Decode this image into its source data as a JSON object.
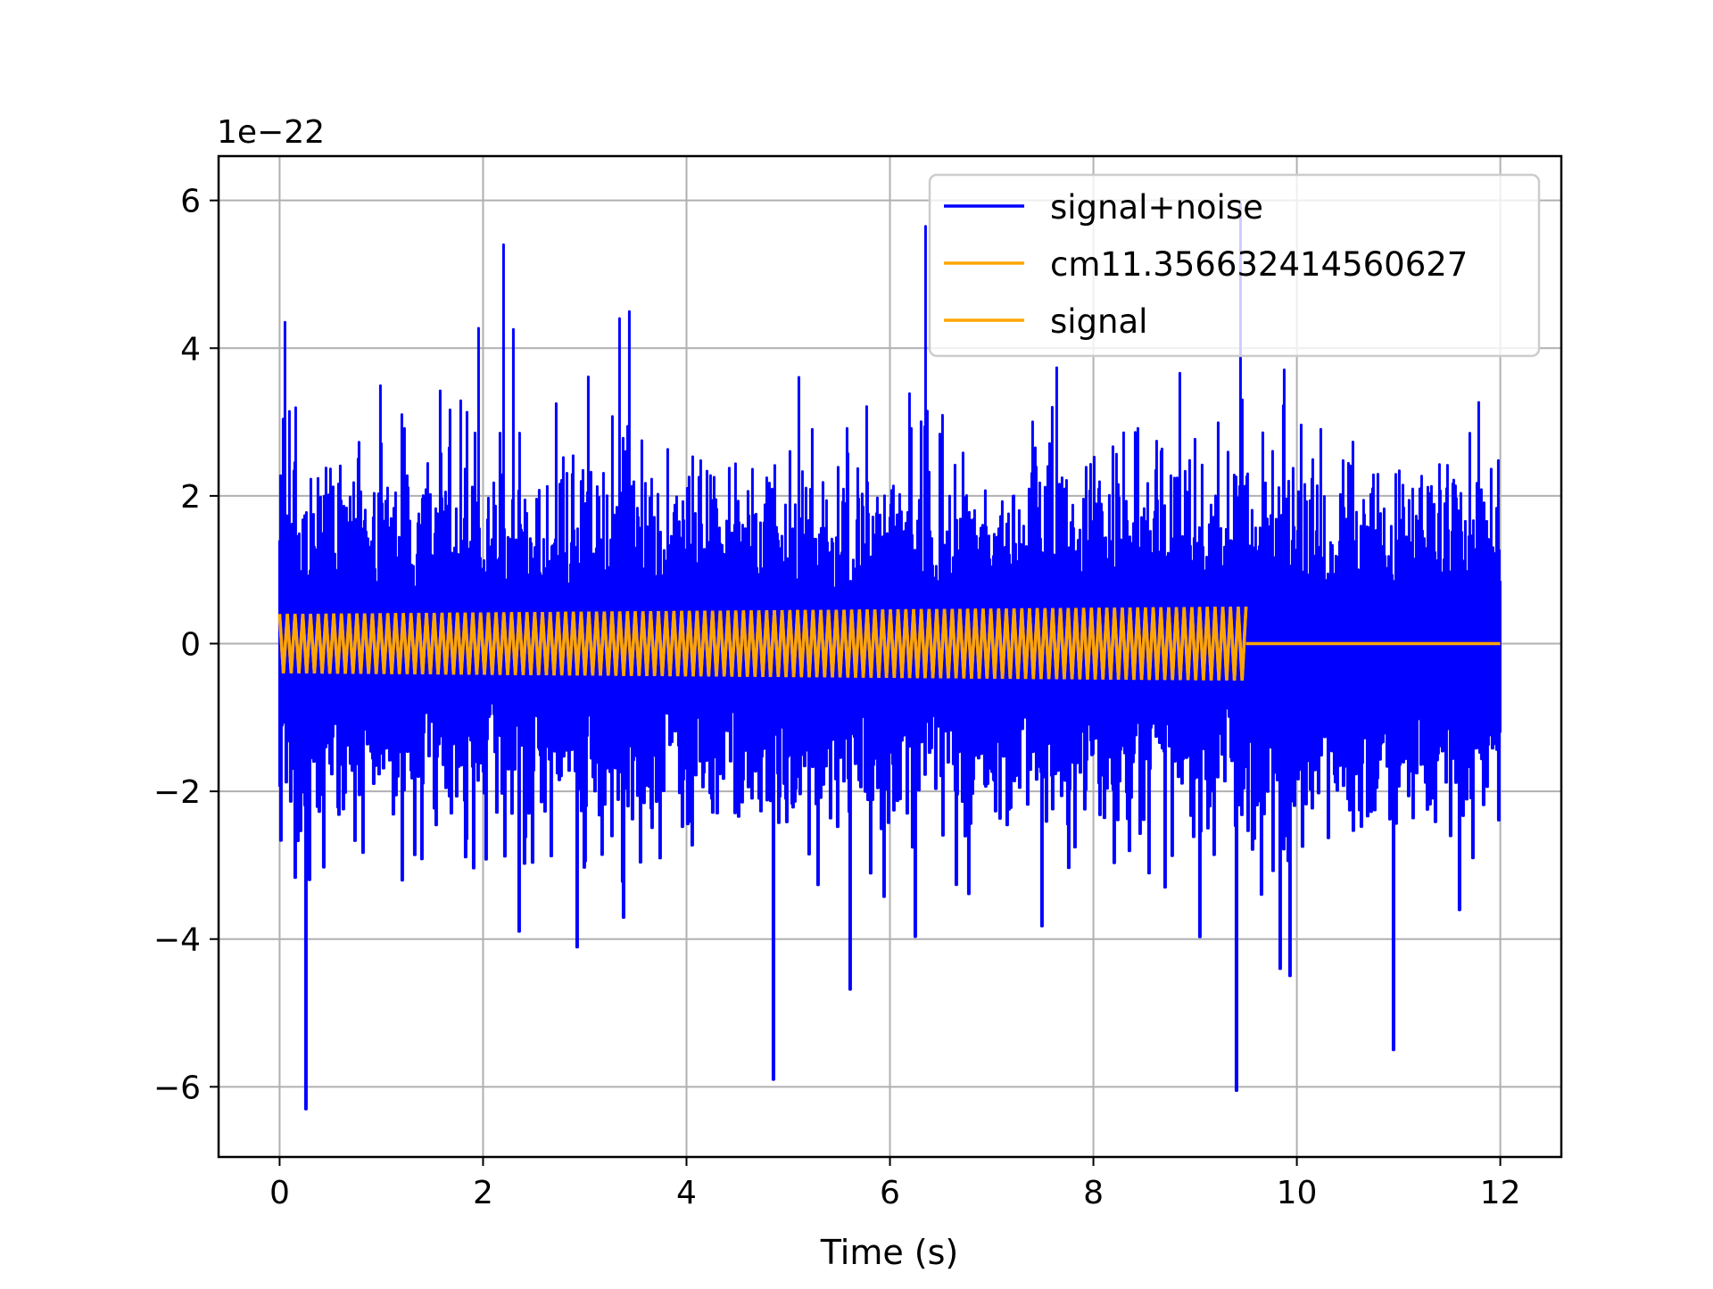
{
  "chart_data": {
    "type": "line",
    "title": "",
    "xlabel": "Time (s)",
    "ylabel": "",
    "y_offset_label": "1e−22",
    "xlim": [
      -0.6,
      12.6
    ],
    "ylim": [
      -6.95,
      6.6
    ],
    "xticks": [
      0,
      2,
      4,
      6,
      8,
      10,
      12
    ],
    "xtick_labels": [
      "0",
      "2",
      "4",
      "6",
      "8",
      "10",
      "12"
    ],
    "yticks": [
      -6,
      -4,
      -2,
      0,
      2,
      4,
      6
    ],
    "ytick_labels": [
      "−6",
      "−4",
      "−2",
      "0",
      "2",
      "4",
      "6"
    ],
    "grid": true,
    "legend_position": "upper right",
    "series": [
      {
        "name": "signal+noise",
        "color": "#0000ff",
        "x_range": [
          0,
          12
        ],
        "amplitude_envelope": {
          "typical": [
            -3.0,
            3.0
          ],
          "max": 5.95,
          "min": -6.3
        },
        "annotated_extremes": [
          {
            "x": 0.05,
            "y": 4.35
          },
          {
            "x": 0.25,
            "y": -6.3
          },
          {
            "x": 2.2,
            "y": 5.4
          },
          {
            "x": 4.85,
            "y": -5.9
          },
          {
            "x": 6.35,
            "y": 5.65
          },
          {
            "x": 9.4,
            "y": -6.05
          },
          {
            "x": 9.45,
            "y": 5.95
          },
          {
            "x": 10.95,
            "y": -5.5
          }
        ]
      },
      {
        "name": "cm11.356632414560627",
        "color": "#ffa500",
        "x_range": [
          0,
          9.5
        ],
        "amplitude": 0.45
      },
      {
        "name": "signal",
        "color": "#ffa500",
        "x_range": [
          0,
          12
        ],
        "segments": [
          {
            "x_start": 0,
            "x_end": 9.5,
            "amplitude_start": 0.4,
            "amplitude_end": 0.5
          },
          {
            "x_start": 9.5,
            "x_end": 12,
            "amplitude_start": 0,
            "amplitude_end": 0
          }
        ]
      }
    ]
  }
}
